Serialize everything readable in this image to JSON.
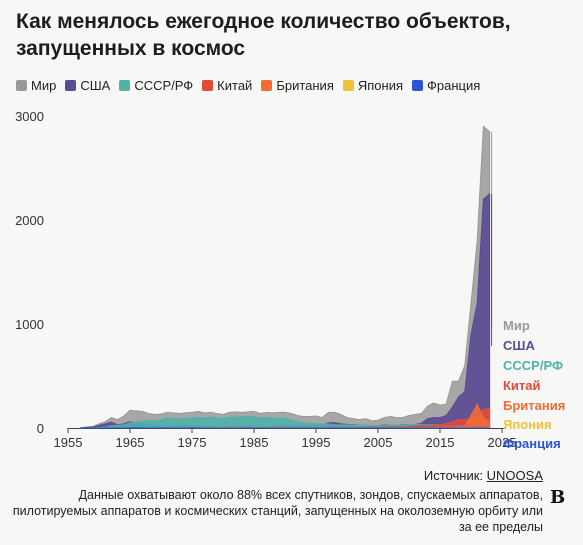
{
  "title": "Как менялось ежегодное количество объектов, запущенных в космос",
  "source_label": "Источник:",
  "source_link": "UNOOSA",
  "note": "Данные охватывают около 88% всех спутников, зондов, спускаемых аппаратов, пилотируемых аппаратов и космических станций, запущенных на околоземную орбиту или за ее пределы",
  "logo_text": "B",
  "chart_data": {
    "type": "area",
    "title": "Как менялось ежегодное количество объектов, запущенных в космос",
    "xlabel": "",
    "ylabel": "",
    "xlim": [
      1957,
      2023
    ],
    "ylim": [
      0,
      3000
    ],
    "x_ticks": [
      1955,
      1965,
      1975,
      1985,
      1995,
      2005,
      2015,
      2025
    ],
    "y_ticks": [
      0,
      1000,
      2000,
      3000
    ],
    "x_tick_labels": [
      "1955",
      "1965",
      "1975",
      "1985",
      "1995",
      "2005",
      "2015",
      "2025"
    ],
    "y_tick_labels": [
      "0",
      "1000",
      "2000",
      "3000"
    ],
    "grid": false,
    "legend_position": "top",
    "x": [
      1957,
      1958,
      1959,
      1960,
      1961,
      1962,
      1963,
      1964,
      1965,
      1966,
      1967,
      1968,
      1969,
      1970,
      1971,
      1972,
      1973,
      1974,
      1975,
      1976,
      1977,
      1978,
      1979,
      1980,
      1981,
      1982,
      1983,
      1984,
      1985,
      1986,
      1987,
      1988,
      1989,
      1990,
      1991,
      1992,
      1993,
      1994,
      1995,
      1996,
      1997,
      1998,
      1999,
      2000,
      2001,
      2002,
      2003,
      2004,
      2005,
      2006,
      2007,
      2008,
      2009,
      2010,
      2011,
      2012,
      2013,
      2014,
      2015,
      2016,
      2017,
      2018,
      2019,
      2020,
      2021,
      2022,
      2023
    ],
    "series": [
      {
        "name": "Мир",
        "color": "#999999",
        "values": [
          2,
          8,
          14,
          40,
          60,
          100,
          80,
          115,
          170,
          165,
          160,
          140,
          130,
          135,
          150,
          145,
          140,
          145,
          150,
          160,
          145,
          150,
          140,
          130,
          150,
          155,
          150,
          155,
          160,
          140,
          150,
          145,
          150,
          150,
          140,
          120,
          110,
          110,
          115,
          100,
          150,
          150,
          130,
          100,
          90,
          80,
          90,
          70,
          75,
          100,
          110,
          100,
          100,
          120,
          130,
          140,
          210,
          240,
          220,
          230,
          450,
          450,
          600,
          1200,
          1800,
          2900,
          2850
        ]
      },
      {
        "name": "США",
        "color": "#5b4a94",
        "values": [
          0,
          7,
          11,
          25,
          40,
          55,
          30,
          40,
          60,
          50,
          40,
          35,
          30,
          20,
          20,
          20,
          25,
          20,
          20,
          20,
          20,
          20,
          18,
          15,
          18,
          18,
          20,
          20,
          15,
          10,
          10,
          15,
          20,
          25,
          25,
          25,
          30,
          30,
          35,
          30,
          50,
          50,
          40,
          35,
          30,
          25,
          25,
          20,
          20,
          30,
          25,
          25,
          30,
          30,
          35,
          45,
          90,
          100,
          100,
          120,
          200,
          300,
          350,
          900,
          1200,
          2200,
          2250
        ]
      },
      {
        "name": "СССР/РФ",
        "color": "#4fb3a8",
        "values": [
          2,
          1,
          3,
          5,
          8,
          20,
          25,
          30,
          50,
          60,
          66,
          74,
          70,
          80,
          95,
          90,
          90,
          95,
          100,
          100,
          98,
          105,
          100,
          90,
          105,
          105,
          110,
          105,
          110,
          95,
          100,
          95,
          95,
          90,
          80,
          60,
          50,
          45,
          40,
          40,
          40,
          30,
          30,
          30,
          25,
          25,
          25,
          25,
          25,
          25,
          25,
          25,
          25,
          30,
          35,
          30,
          30,
          35,
          30,
          25,
          25,
          25,
          30,
          20,
          25,
          30,
          25
        ]
      },
      {
        "name": "Китай",
        "color": "#e14a3b",
        "values": [
          0,
          0,
          0,
          0,
          0,
          0,
          0,
          0,
          0,
          0,
          0,
          0,
          0,
          1,
          1,
          0,
          0,
          0,
          3,
          3,
          1,
          1,
          0,
          0,
          3,
          1,
          1,
          3,
          2,
          2,
          3,
          4,
          2,
          5,
          1,
          3,
          1,
          5,
          2,
          3,
          6,
          6,
          5,
          5,
          1,
          5,
          6,
          10,
          5,
          8,
          10,
          10,
          8,
          15,
          20,
          22,
          20,
          30,
          30,
          45,
          60,
          80,
          80,
          90,
          120,
          180,
          190
        ]
      },
      {
        "name": "Британия",
        "color": "#f06c35",
        "values": [
          0,
          0,
          0,
          0,
          0,
          0,
          1,
          0,
          0,
          0,
          1,
          0,
          0,
          0,
          1,
          0,
          0,
          1,
          1,
          0,
          0,
          1,
          0,
          0,
          1,
          0,
          0,
          0,
          0,
          0,
          0,
          0,
          1,
          1,
          2,
          1,
          1,
          1,
          1,
          1,
          2,
          1,
          3,
          1,
          2,
          1,
          3,
          1,
          2,
          1,
          2,
          1,
          1,
          2,
          3,
          4,
          5,
          6,
          6,
          8,
          10,
          12,
          15,
          120,
          230,
          100,
          60
        ]
      },
      {
        "name": "Япония",
        "color": "#f0c23a",
        "values": [
          0,
          0,
          0,
          0,
          0,
          0,
          0,
          0,
          0,
          0,
          0,
          0,
          0,
          1,
          2,
          1,
          1,
          1,
          3,
          1,
          4,
          3,
          2,
          2,
          3,
          3,
          3,
          3,
          3,
          3,
          3,
          3,
          3,
          3,
          3,
          3,
          3,
          3,
          3,
          3,
          3,
          3,
          3,
          3,
          3,
          3,
          3,
          3,
          3,
          3,
          3,
          3,
          3,
          3,
          3,
          3,
          3,
          3,
          3,
          3,
          3,
          3,
          3,
          3,
          3,
          3,
          3
        ]
      },
      {
        "name": "Франция",
        "color": "#2b53d8",
        "values": [
          0,
          0,
          0,
          0,
          0,
          0,
          0,
          0,
          1,
          2,
          1,
          0,
          0,
          1,
          2,
          1,
          1,
          1,
          2,
          1,
          1,
          1,
          0,
          0,
          1,
          0,
          1,
          1,
          1,
          1,
          1,
          1,
          1,
          1,
          1,
          1,
          1,
          1,
          1,
          1,
          1,
          1,
          1,
          1,
          1,
          1,
          1,
          1,
          1,
          1,
          1,
          1,
          1,
          1,
          1,
          1,
          1,
          1,
          1,
          1,
          1,
          1,
          1,
          1,
          1,
          1,
          1
        ]
      }
    ]
  }
}
